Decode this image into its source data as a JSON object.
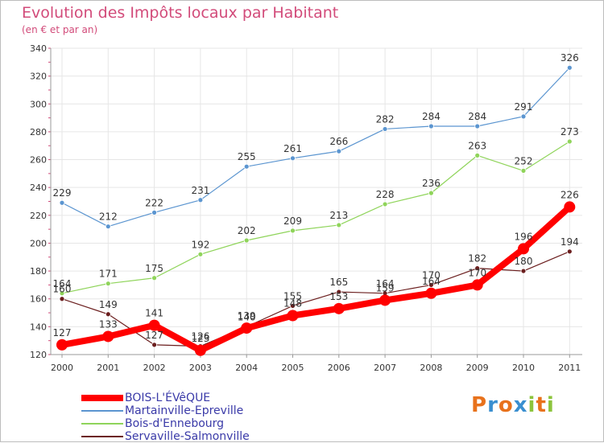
{
  "title": "Evolution des Impôts locaux par Habitant",
  "subtitle": "(en € et par an)",
  "logo": {
    "letters": [
      "P",
      "r",
      "o",
      "x",
      "i",
      "t",
      "i"
    ],
    "colors": [
      "#e8721c",
      "#3a8fd0",
      "#e8721c",
      "#3a8fd0",
      "#8cc43c",
      "#e8721c",
      "#8cc43c"
    ]
  },
  "chart_data": {
    "type": "line",
    "title": "Evolution des Impôts locaux par Habitant",
    "subtitle": "(en € et par an)",
    "xlabel": "",
    "ylabel": "",
    "categories": [
      "2000",
      "2001",
      "2002",
      "2003",
      "2004",
      "2005",
      "2006",
      "2007",
      "2008",
      "2009",
      "2010",
      "2011"
    ],
    "ylim": [
      120,
      340
    ],
    "yticks": [
      120,
      140,
      160,
      180,
      200,
      220,
      240,
      260,
      280,
      300,
      320,
      340
    ],
    "legend_position": "bottom-left",
    "series": [
      {
        "name": "Martainville-Epreville",
        "color": "#5b95d0",
        "values": [
          229,
          212,
          222,
          231,
          255,
          261,
          266,
          282,
          284,
          284,
          291,
          326
        ]
      },
      {
        "name": "Bois-d'Ennebourg",
        "color": "#8fd45a",
        "values": [
          164,
          171,
          175,
          192,
          202,
          209,
          213,
          228,
          236,
          263,
          252,
          273
        ]
      },
      {
        "name": "Servaville-Salmonville",
        "color": "#6b1e1e",
        "values": [
          160,
          149,
          127,
          126,
          140,
          155,
          165,
          164,
          170,
          182,
          180,
          194
        ]
      },
      {
        "name": "BOIS-L'ÉVêQUE",
        "color": "#ff0000",
        "values": [
          127,
          133,
          141,
          123,
          139,
          148,
          153,
          159,
          164,
          170,
          196,
          226
        ]
      }
    ],
    "legend": [
      {
        "name": "BOIS-L'ÉVêQUE",
        "color": "#ff0000"
      },
      {
        "name": "Martainville-Epreville",
        "color": "#5b95d0"
      },
      {
        "name": "Bois-d'Ennebourg",
        "color": "#8fd45a"
      },
      {
        "name": "Servaville-Salmonville",
        "color": "#6b1e1e"
      }
    ]
  }
}
